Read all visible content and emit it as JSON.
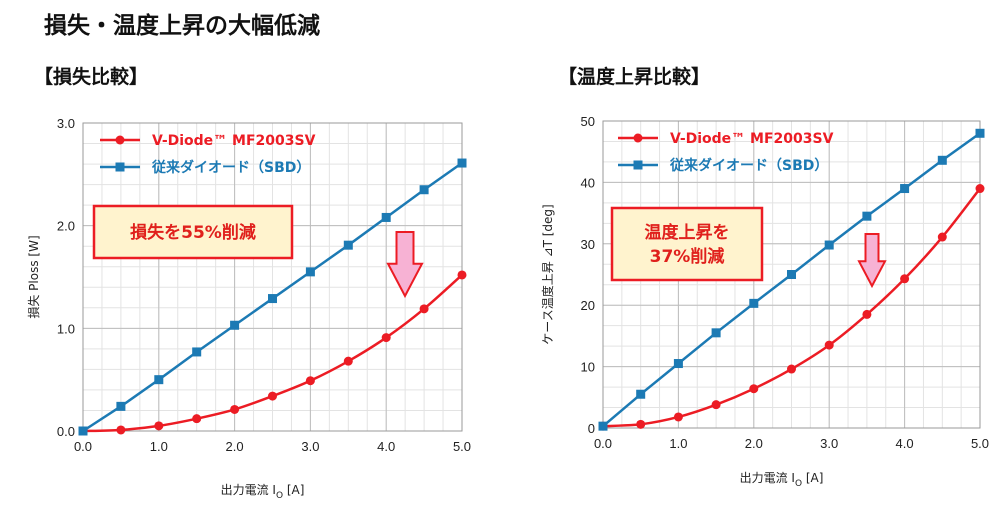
{
  "page_title": "損失・温度上昇の大幅低減",
  "colors": {
    "series_red": "#ec1c24",
    "series_blue": "#1c7ab4",
    "arrow_fill": "#f7b2d4",
    "annot_border": "#ec1c24",
    "annot_bg": "#fff3ce"
  },
  "chart_data": [
    {
      "type": "line",
      "title": "【損失比較】",
      "xlabel": "出力電流 I",
      "xlabel_sub": "O",
      "xlabel_unit": " [A]",
      "ylabel": "損失 Ploss [W]",
      "xlim": [
        0,
        5
      ],
      "ylim": [
        0,
        3
      ],
      "x_ticks": [
        "0.0",
        "1.0",
        "2.0",
        "3.0",
        "4.0",
        "5.0"
      ],
      "y_ticks": [
        "0.0",
        "1.0",
        "2.0",
        "3.0"
      ],
      "y_tick_values": [
        0,
        1,
        2,
        3
      ],
      "grid": true,
      "legend_position": "top-left",
      "annotation": [
        "損失を55%削減"
      ],
      "series": [
        {
          "name": "V-Diode™ MF2003SV",
          "marker": "circle",
          "color": "#ec1c24",
          "x": [
            0,
            0.5,
            1,
            1.5,
            2,
            2.5,
            3,
            3.5,
            4,
            4.5,
            5
          ],
          "y": [
            0,
            0.01,
            0.05,
            0.12,
            0.21,
            0.34,
            0.49,
            0.68,
            0.91,
            1.19,
            1.52
          ]
        },
        {
          "name": "従来ダイオード（SBD）",
          "marker": "square",
          "color": "#1c7ab4",
          "x": [
            0,
            0.5,
            1,
            1.5,
            2,
            2.5,
            3,
            3.5,
            4,
            4.5,
            5
          ],
          "y": [
            0,
            0.24,
            0.5,
            0.77,
            1.03,
            1.29,
            1.55,
            1.81,
            2.08,
            2.35,
            2.61
          ]
        }
      ]
    },
    {
      "type": "line",
      "title": "【温度上昇比較】",
      "xlabel": "出力電流 I",
      "xlabel_sub": "O",
      "xlabel_unit": " [A]",
      "ylabel": "ケース温度上昇 ⊿T [deg]",
      "xlim": [
        0,
        5
      ],
      "ylim": [
        0,
        50
      ],
      "x_ticks": [
        "0.0",
        "1.0",
        "2.0",
        "3.0",
        "4.0",
        "5.0"
      ],
      "y_ticks": [
        "0",
        "10",
        "20",
        "30",
        "40",
        "50"
      ],
      "y_tick_values": [
        0,
        10,
        20,
        30,
        40,
        50
      ],
      "grid": true,
      "legend_position": "top-left",
      "annotation": [
        "温度上昇を",
        "37%削減"
      ],
      "series": [
        {
          "name": "V-Diode™ MF2003SV",
          "marker": "circle",
          "color": "#ec1c24",
          "x": [
            0,
            0.5,
            1,
            1.5,
            2,
            2.5,
            3,
            3.5,
            4,
            4.5,
            5
          ],
          "y": [
            0.3,
            0.6,
            1.8,
            3.8,
            6.4,
            9.6,
            13.5,
            18.5,
            24.3,
            31.1,
            39.0
          ]
        },
        {
          "name": "従来ダイオード（SBD）",
          "marker": "square",
          "color": "#1c7ab4",
          "x": [
            0,
            0.5,
            1,
            1.5,
            2,
            2.5,
            3,
            3.5,
            4,
            4.5,
            5
          ],
          "y": [
            0.3,
            5.5,
            10.5,
            15.5,
            20.3,
            25.0,
            29.8,
            34.5,
            39.0,
            43.6,
            48.0
          ]
        }
      ]
    }
  ]
}
